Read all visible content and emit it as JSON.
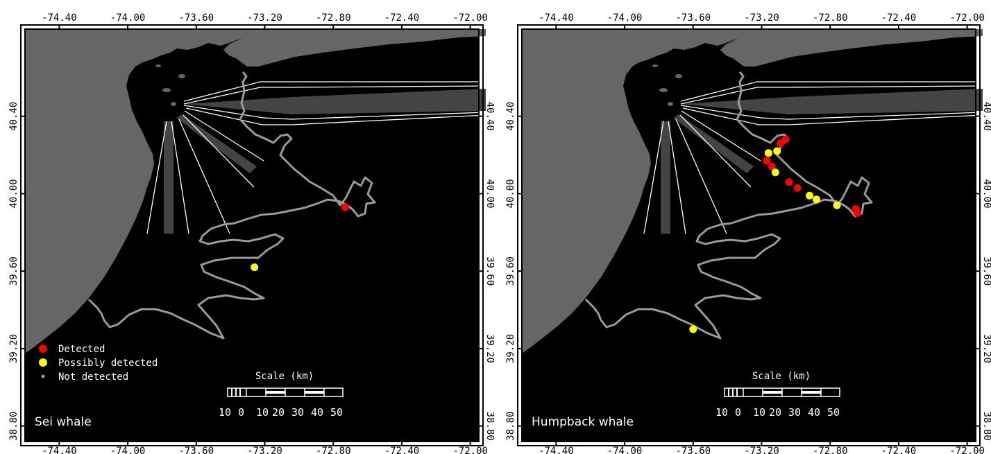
{
  "panels": [
    {
      "title": "Sei whale",
      "legend": [
        {
          "label": "Detected",
          "color": "#ff0000"
        },
        {
          "label": "Possibly detected",
          "color": "#ffff00"
        },
        {
          "label": "Not detected",
          "color": "#999999"
        }
      ],
      "detections": [
        {
          "lon": -72.73,
          "lat": 39.93,
          "status": "Detected"
        },
        {
          "lon": -73.26,
          "lat": 39.62,
          "status": "Possibly detected"
        }
      ]
    },
    {
      "title": "Humpback whale",
      "legend": [],
      "detections": [
        {
          "lon": -73.06,
          "lat": 40.28,
          "status": "Detected"
        },
        {
          "lon": -73.09,
          "lat": 40.26,
          "status": "Detected"
        },
        {
          "lon": -73.11,
          "lat": 40.22,
          "status": "Possibly detected"
        },
        {
          "lon": -73.16,
          "lat": 40.21,
          "status": "Possibly detected"
        },
        {
          "lon": -73.17,
          "lat": 40.17,
          "status": "Detected"
        },
        {
          "lon": -73.14,
          "lat": 40.14,
          "status": "Detected"
        },
        {
          "lon": -73.12,
          "lat": 40.11,
          "status": "Possibly detected"
        },
        {
          "lon": -73.04,
          "lat": 40.06,
          "status": "Detected"
        },
        {
          "lon": -72.99,
          "lat": 40.03,
          "status": "Detected"
        },
        {
          "lon": -72.92,
          "lat": 39.99,
          "status": "Possibly detected"
        },
        {
          "lon": -72.88,
          "lat": 39.97,
          "status": "Possibly detected"
        },
        {
          "lon": -72.76,
          "lat": 39.94,
          "status": "Possibly detected"
        },
        {
          "lon": -72.65,
          "lat": 39.92,
          "status": "Detected"
        },
        {
          "lon": -72.64,
          "lat": 39.9,
          "status": "Detected"
        },
        {
          "lon": -73.6,
          "lat": 39.3,
          "status": "Possibly detected"
        }
      ]
    }
  ],
  "axes": {
    "lon_ticks": [
      "-74.40",
      "-74.00",
      "-73.60",
      "-73.20",
      "-72.80",
      "-72.40",
      "-72.00"
    ],
    "lat_ticks": [
      "40.40",
      "40.00",
      "39.60",
      "39.20",
      "38.80"
    ],
    "lon_range": [
      -74.6,
      -71.95
    ],
    "lat_range": [
      38.72,
      40.85
    ]
  },
  "scale_bar": {
    "title": "Scale (km)",
    "labels": [
      "10",
      "0",
      "10",
      "20",
      "30",
      "40",
      "50"
    ]
  },
  "colors": {
    "ocean": "#000000",
    "land": "#666666",
    "track": "#9a9a9a",
    "transect_lines": "#ffffff",
    "shipping_lanes": "#444444",
    "detected": "#ff0000",
    "possibly_detected": "#ffff00"
  }
}
